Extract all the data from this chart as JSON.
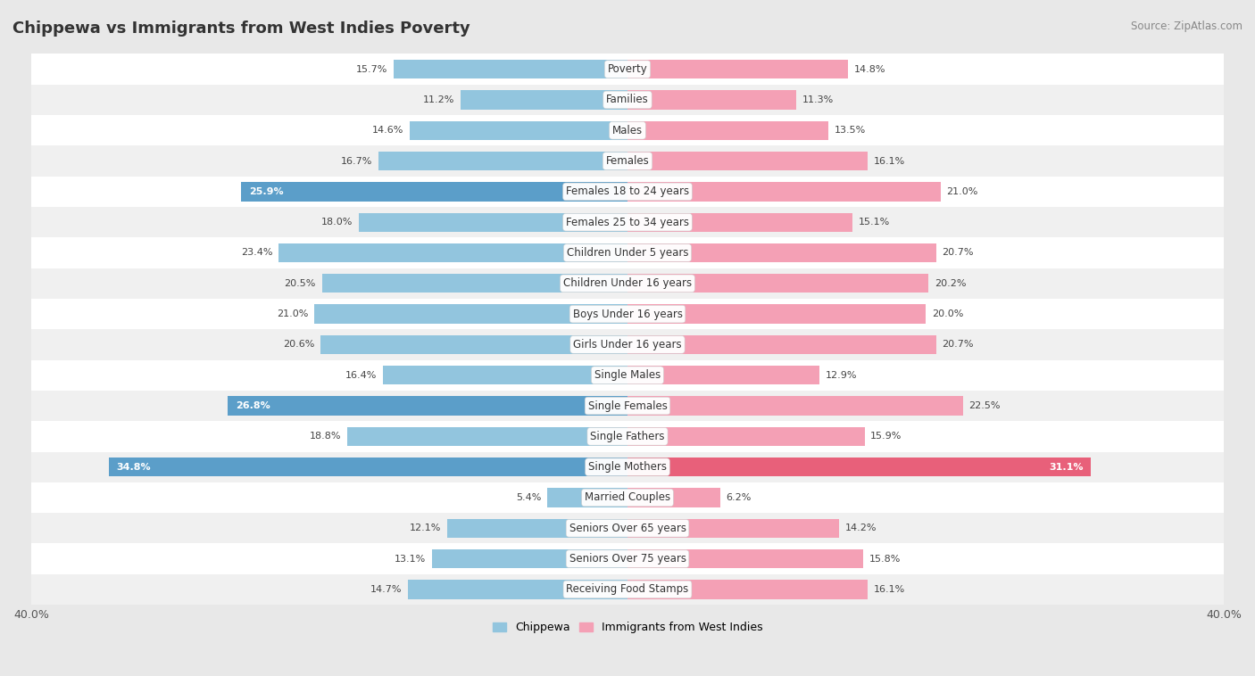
{
  "title": "Chippewa vs Immigrants from West Indies Poverty",
  "source": "Source: ZipAtlas.com",
  "categories": [
    "Poverty",
    "Families",
    "Males",
    "Females",
    "Females 18 to 24 years",
    "Females 25 to 34 years",
    "Children Under 5 years",
    "Children Under 16 years",
    "Boys Under 16 years",
    "Girls Under 16 years",
    "Single Males",
    "Single Females",
    "Single Fathers",
    "Single Mothers",
    "Married Couples",
    "Seniors Over 65 years",
    "Seniors Over 75 years",
    "Receiving Food Stamps"
  ],
  "left_values": [
    15.7,
    11.2,
    14.6,
    16.7,
    25.9,
    18.0,
    23.4,
    20.5,
    21.0,
    20.6,
    16.4,
    26.8,
    18.8,
    34.8,
    5.4,
    12.1,
    13.1,
    14.7
  ],
  "right_values": [
    14.8,
    11.3,
    13.5,
    16.1,
    21.0,
    15.1,
    20.7,
    20.2,
    20.0,
    20.7,
    12.9,
    22.5,
    15.9,
    31.1,
    6.2,
    14.2,
    15.8,
    16.1
  ],
  "left_color": "#92C5DE",
  "right_color": "#F4A0B5",
  "highlight_left_color": "#5B9EC9",
  "highlight_right_color": "#E8607A",
  "left_label": "Chippewa",
  "right_label": "Immigrants from West Indies",
  "axis_max": 40.0,
  "background_color": "#e8e8e8",
  "row_color_even": "#ffffff",
  "row_color_odd": "#f0f0f0",
  "label_color": "#444444",
  "title_fontsize": 13,
  "bar_height": 0.62
}
